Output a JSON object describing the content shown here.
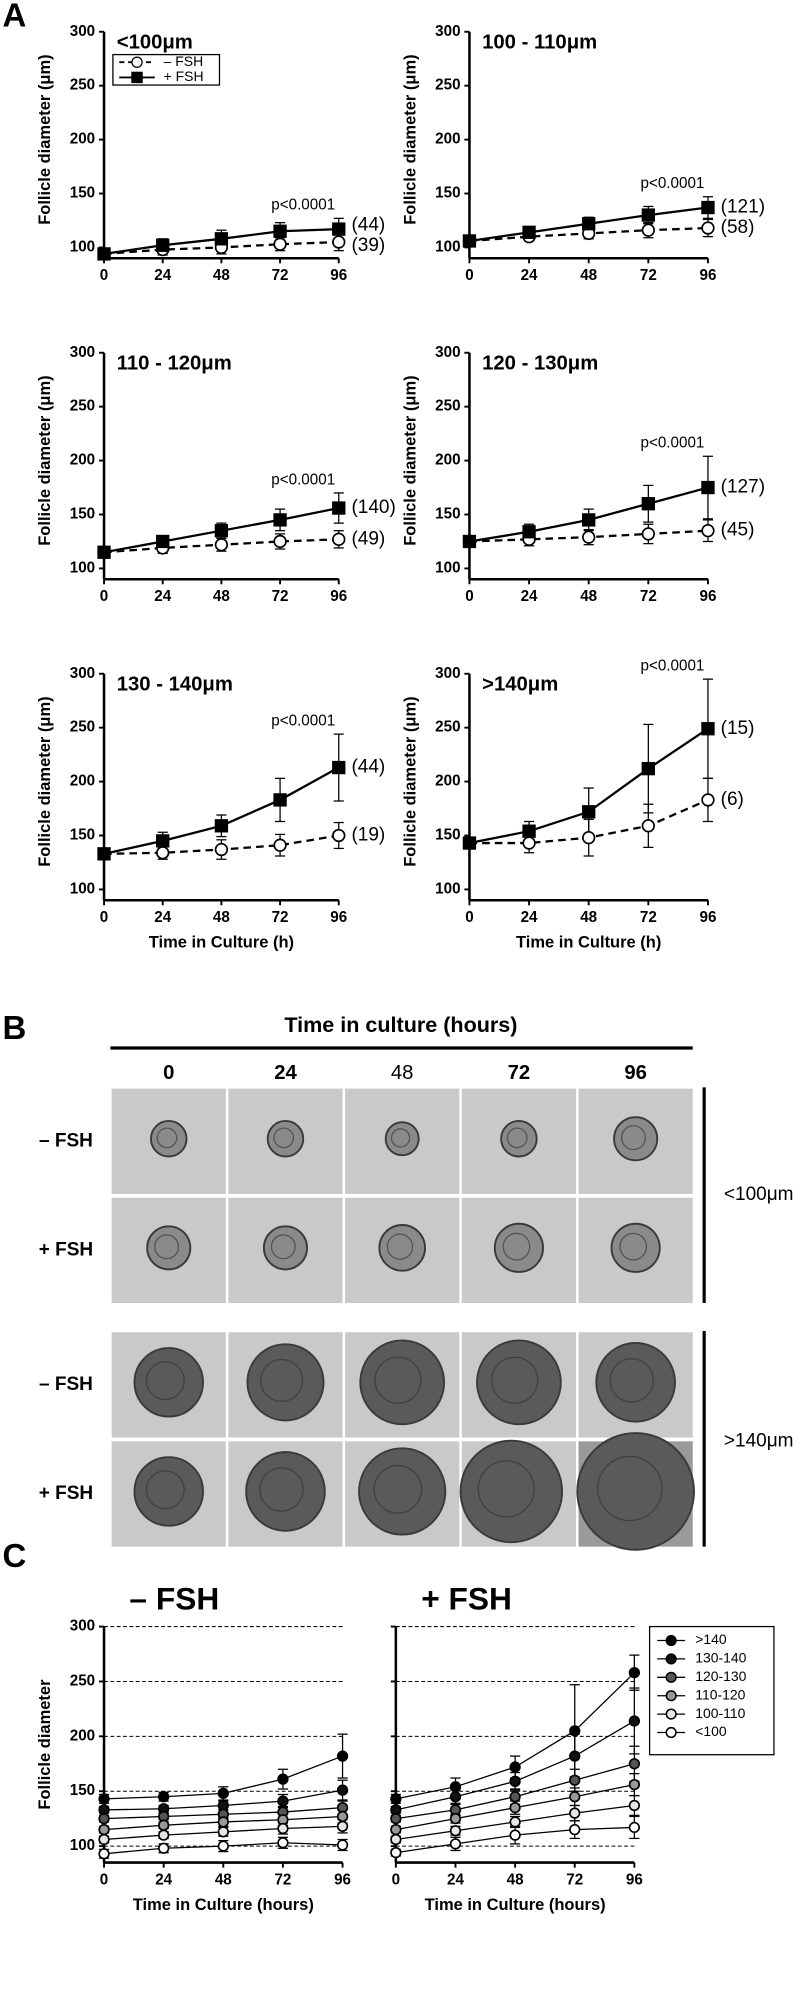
{
  "panel_labels": [
    "A",
    "B",
    "C"
  ],
  "image_panel": {
    "title": "Time in culture (hours)",
    "columns": [
      "0",
      "24",
      "48",
      "72",
      "96"
    ],
    "rows": [
      "– FSH",
      "+ FSH",
      "– FSH",
      "+ FSH"
    ],
    "groups": [
      "<100μm",
      ">140μm"
    ]
  },
  "chart_data": [
    {
      "type": "line",
      "title": "<100μm",
      "x": [
        0,
        24,
        48,
        72,
        96
      ],
      "xlim": [
        0,
        96
      ],
      "xticks": [
        0,
        24,
        48,
        72,
        96
      ],
      "ylim": [
        90,
        300
      ],
      "yticks": [
        100,
        150,
        200,
        250,
        300
      ],
      "ylabel": "Follicle diameter (μm)",
      "legend": "upper left",
      "annotation": "p<0.0001",
      "series": [
        {
          "name": "– FSH",
          "color": "#000000",
          "fill": "#ffffff",
          "marker": "circle",
          "dash": true,
          "values": [
            94,
            98,
            100,
            103,
            105
          ],
          "errors": [
            3,
            5,
            6,
            6,
            8
          ],
          "n_label": "(39)"
        },
        {
          "name": "+ FSH",
          "color": "#000000",
          "fill": "#000000",
          "marker": "square",
          "dash": false,
          "values": [
            94,
            102,
            108,
            115,
            117
          ],
          "errors": [
            3,
            6,
            8,
            8,
            10
          ],
          "n_label": "(44)"
        }
      ]
    },
    {
      "type": "line",
      "title": "100 - 110μm",
      "x": [
        0,
        24,
        48,
        72,
        96
      ],
      "xlim": [
        0,
        96
      ],
      "xticks": [
        0,
        24,
        48,
        72,
        96
      ],
      "ylim": [
        90,
        300
      ],
      "yticks": [
        100,
        150,
        200,
        250,
        300
      ],
      "ylabel": "Follicle diameter (μm)",
      "annotation": "p<0.0001",
      "series": [
        {
          "color": "#000000",
          "fill": "#ffffff",
          "marker": "circle",
          "dash": true,
          "values": [
            106,
            110,
            113,
            116,
            118
          ],
          "errors": [
            3,
            4,
            5,
            7,
            8
          ],
          "n_label": "(58)"
        },
        {
          "color": "#000000",
          "fill": "#000000",
          "marker": "square",
          "dash": false,
          "values": [
            106,
            114,
            122,
            130,
            137
          ],
          "errors": [
            3,
            4,
            6,
            8,
            10
          ],
          "n_label": "(121)"
        }
      ]
    },
    {
      "type": "line",
      "title": "110 - 120μm",
      "x": [
        0,
        24,
        48,
        72,
        96
      ],
      "xlim": [
        0,
        96
      ],
      "xticks": [
        0,
        24,
        48,
        72,
        96
      ],
      "ylim": [
        90,
        300
      ],
      "yticks": [
        100,
        150,
        200,
        250,
        300
      ],
      "ylabel": "Follicle diameter (μm)",
      "annotation": "p<0.0001",
      "series": [
        {
          "color": "#000000",
          "fill": "#ffffff",
          "marker": "circle",
          "dash": true,
          "values": [
            115,
            119,
            122,
            125,
            127
          ],
          "errors": [
            3,
            5,
            6,
            7,
            8
          ],
          "n_label": "(49)"
        },
        {
          "color": "#000000",
          "fill": "#000000",
          "marker": "square",
          "dash": false,
          "values": [
            115,
            125,
            135,
            145,
            156
          ],
          "errors": [
            3,
            5,
            7,
            10,
            14
          ],
          "n_label": "(140)"
        }
      ]
    },
    {
      "type": "line",
      "title": "120 - 130μm",
      "x": [
        0,
        24,
        48,
        72,
        96
      ],
      "xlim": [
        0,
        96
      ],
      "xticks": [
        0,
        24,
        48,
        72,
        96
      ],
      "ylim": [
        90,
        300
      ],
      "yticks": [
        100,
        150,
        200,
        250,
        300
      ],
      "ylabel": "Follicle diameter (μm)",
      "annotation": "p<0.0001",
      "series": [
        {
          "color": "#000000",
          "fill": "#ffffff",
          "marker": "circle",
          "dash": true,
          "values": [
            125,
            127,
            129,
            132,
            135
          ],
          "errors": [
            3,
            6,
            7,
            9,
            10
          ],
          "n_label": "(45)"
        },
        {
          "color": "#000000",
          "fill": "#000000",
          "marker": "square",
          "dash": false,
          "values": [
            125,
            134,
            145,
            160,
            175
          ],
          "errors": [
            3,
            7,
            10,
            17,
            29
          ],
          "n_label": "(127)"
        }
      ]
    },
    {
      "type": "line",
      "title": "130 - 140μm",
      "x": [
        0,
        24,
        48,
        72,
        96
      ],
      "xlim": [
        0,
        96
      ],
      "xticks": [
        0,
        24,
        48,
        72,
        96
      ],
      "ylim": [
        90,
        300
      ],
      "yticks": [
        100,
        150,
        200,
        250,
        300
      ],
      "ylabel": "Follicle diameter (μm)",
      "xlabel": "Time in Culture (h)",
      "annotation": "p<0.0001",
      "series": [
        {
          "color": "#000000",
          "fill": "#ffffff",
          "marker": "circle",
          "dash": true,
          "values": [
            133,
            134,
            137,
            141,
            150
          ],
          "errors": [
            4,
            6,
            9,
            10,
            12
          ],
          "n_label": "(19)"
        },
        {
          "color": "#000000",
          "fill": "#000000",
          "marker": "square",
          "dash": false,
          "values": [
            133,
            145,
            159,
            183,
            213
          ],
          "errors": [
            4,
            8,
            10,
            20,
            31
          ],
          "n_label": "(44)"
        }
      ]
    },
    {
      "type": "line",
      "title": ">140μm",
      "x": [
        0,
        24,
        48,
        72,
        96
      ],
      "xlim": [
        0,
        96
      ],
      "xticks": [
        0,
        24,
        48,
        72,
        96
      ],
      "ylim": [
        90,
        300
      ],
      "yticks": [
        100,
        150,
        200,
        250,
        300
      ],
      "ylabel": "Follicle diameter (μm)",
      "xlabel": "Time in Culture (h)",
      "annotation": "p<0.0001",
      "series": [
        {
          "color": "#000000",
          "fill": "#ffffff",
          "marker": "circle",
          "dash": true,
          "values": [
            143,
            143,
            148,
            159,
            183
          ],
          "errors": [
            5,
            9,
            17,
            20,
            20
          ],
          "n_label": "(6)"
        },
        {
          "color": "#000000",
          "fill": "#000000",
          "marker": "square",
          "dash": false,
          "values": [
            143,
            154,
            172,
            212,
            249
          ],
          "errors": [
            5,
            9,
            22,
            41,
            46
          ],
          "n_label": "(15)"
        }
      ]
    },
    {
      "type": "line",
      "title": "– FSH",
      "x": [
        0,
        24,
        48,
        72,
        96
      ],
      "xlim": [
        0,
        96
      ],
      "xticks": [
        0,
        24,
        48,
        72,
        96
      ],
      "ylim": [
        85,
        300
      ],
      "yticks": [
        100,
        150,
        200,
        250,
        300
      ],
      "ylabel": "Follicle diameter",
      "xlabel": "Time in Culture (hours)",
      "grid": true,
      "series": [
        {
          "color": "#000000",
          "fill": "#000000",
          "marker": "circle",
          "values": [
            143,
            145,
            148,
            161,
            182
          ],
          "errors": [
            4,
            4,
            6,
            9,
            20
          ]
        },
        {
          "color": "#000000",
          "fill": "#111111",
          "marker": "circle",
          "values": [
            133,
            134,
            137,
            141,
            151
          ],
          "errors": [
            3,
            3,
            4,
            6,
            9
          ]
        },
        {
          "color": "#000000",
          "fill": "#555555",
          "marker": "circle",
          "values": [
            125,
            127,
            129,
            131,
            135
          ],
          "errors": [
            3,
            3,
            4,
            5,
            6
          ]
        },
        {
          "color": "#000000",
          "fill": "#999999",
          "marker": "circle",
          "values": [
            115,
            119,
            122,
            124,
            127
          ],
          "errors": [
            3,
            3,
            4,
            5,
            6
          ]
        },
        {
          "color": "#000000",
          "fill": "#e6e6e6",
          "marker": "circle",
          "values": [
            106,
            110,
            113,
            116,
            118
          ],
          "errors": [
            3,
            3,
            4,
            5,
            6
          ]
        },
        {
          "color": "#000000",
          "fill": "#ffffff",
          "marker": "circle",
          "values": [
            93,
            98,
            100,
            103,
            101
          ],
          "errors": [
            4,
            4,
            5,
            5,
            5
          ]
        }
      ]
    },
    {
      "type": "line",
      "title": "+ FSH",
      "x": [
        0,
        24,
        48,
        72,
        96
      ],
      "xlim": [
        0,
        96
      ],
      "xticks": [
        0,
        24,
        48,
        72,
        96
      ],
      "ylim": [
        85,
        300
      ],
      "yticks": [
        100,
        150,
        200,
        250,
        300
      ],
      "xlabel": "Time in Culture (hours)",
      "grid": true,
      "show_ytick_labels": false,
      "legend": "right",
      "series": [
        {
          "name": ">140",
          "color": "#000000",
          "fill": "#000000",
          "marker": "circle",
          "values": [
            143,
            154,
            172,
            205,
            258
          ],
          "errors": [
            4,
            8,
            10,
            42,
            16
          ]
        },
        {
          "name": "130-140",
          "color": "#000000",
          "fill": "#111111",
          "marker": "circle",
          "values": [
            133,
            145,
            159,
            182,
            214
          ],
          "errors": [
            3,
            6,
            8,
            20,
            30
          ]
        },
        {
          "name": "120-130",
          "color": "#000000",
          "fill": "#555555",
          "marker": "circle",
          "values": [
            125,
            133,
            145,
            160,
            175
          ],
          "errors": [
            3,
            5,
            7,
            10,
            16
          ]
        },
        {
          "name": "110-120",
          "color": "#000000",
          "fill": "#999999",
          "marker": "circle",
          "values": [
            115,
            125,
            135,
            145,
            156
          ],
          "errors": [
            3,
            4,
            6,
            8,
            10
          ]
        },
        {
          "name": "100-110",
          "color": "#000000",
          "fill": "#e6e6e6",
          "marker": "circle",
          "values": [
            106,
            114,
            122,
            130,
            137
          ],
          "errors": [
            3,
            4,
            5,
            7,
            9
          ]
        },
        {
          "name": "<100",
          "color": "#000000",
          "fill": "#ffffff",
          "marker": "circle",
          "values": [
            94,
            102,
            110,
            115,
            117
          ],
          "errors": [
            3,
            6,
            8,
            8,
            10
          ]
        }
      ]
    }
  ]
}
